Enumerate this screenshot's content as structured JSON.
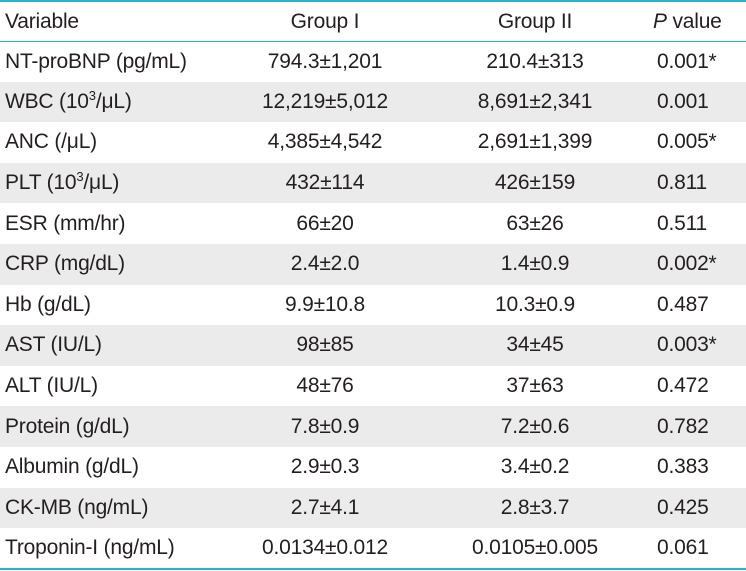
{
  "table": {
    "headers": {
      "variable": "Variable",
      "group1": "Group I",
      "group2": "Group II",
      "p_italic": "P",
      "p_rest": " value"
    },
    "rows": [
      {
        "var_pre": "NT-proBNP (pg/mL)",
        "sup": "",
        "var_post": "",
        "g1": "794.3±1,201",
        "g2": "210.4±313",
        "p": "0.001*"
      },
      {
        "var_pre": "WBC (10",
        "sup": "3",
        "var_post": "/μL)",
        "g1": "12,219±5,012",
        "g2": "8,691±2,341",
        "p": "0.001"
      },
      {
        "var_pre": "ANC (/μL)",
        "sup": "",
        "var_post": "",
        "g1": "4,385±4,542",
        "g2": "2,691±1,399",
        "p": "0.005*"
      },
      {
        "var_pre": "PLT (10",
        "sup": "3",
        "var_post": "/μL)",
        "g1": "432±114",
        "g2": "426±159",
        "p": "0.811"
      },
      {
        "var_pre": "ESR (mm/hr)",
        "sup": "",
        "var_post": "",
        "g1": "66±20",
        "g2": "63±26",
        "p": "0.511"
      },
      {
        "var_pre": "CRP (mg/dL)",
        "sup": "",
        "var_post": "",
        "g1": "2.4±2.0",
        "g2": "1.4±0.9",
        "p": "0.002*"
      },
      {
        "var_pre": "Hb (g/dL)",
        "sup": "",
        "var_post": "",
        "g1": "9.9±10.8",
        "g2": "10.3±0.9",
        "p": "0.487"
      },
      {
        "var_pre": "AST (IU/L)",
        "sup": "",
        "var_post": "",
        "g1": "98±85",
        "g2": "34±45",
        "p": "0.003*"
      },
      {
        "var_pre": "ALT (IU/L)",
        "sup": "",
        "var_post": "",
        "g1": "48±76",
        "g2": "37±63",
        "p": "0.472"
      },
      {
        "var_pre": "Protein (g/dL)",
        "sup": "",
        "var_post": "",
        "g1": "7.8±0.9",
        "g2": "7.2±0.6",
        "p": "0.782"
      },
      {
        "var_pre": "Albumin (g/dL)",
        "sup": "",
        "var_post": "",
        "g1": "2.9±0.3",
        "g2": "3.4±0.2",
        "p": "0.383"
      },
      {
        "var_pre": "CK-MB (ng/mL)",
        "sup": "",
        "var_post": "",
        "g1": "2.7±4.1",
        "g2": "2.8±3.7",
        "p": "0.425"
      },
      {
        "var_pre": "Troponin-I (ng/mL)",
        "sup": "",
        "var_post": "",
        "g1": "0.0134±0.012",
        "g2": "0.0105±0.005",
        "p": "0.061"
      }
    ]
  },
  "colors": {
    "rule": "#2bb1c9",
    "shade": "#ebebeb",
    "text": "#231f20"
  }
}
